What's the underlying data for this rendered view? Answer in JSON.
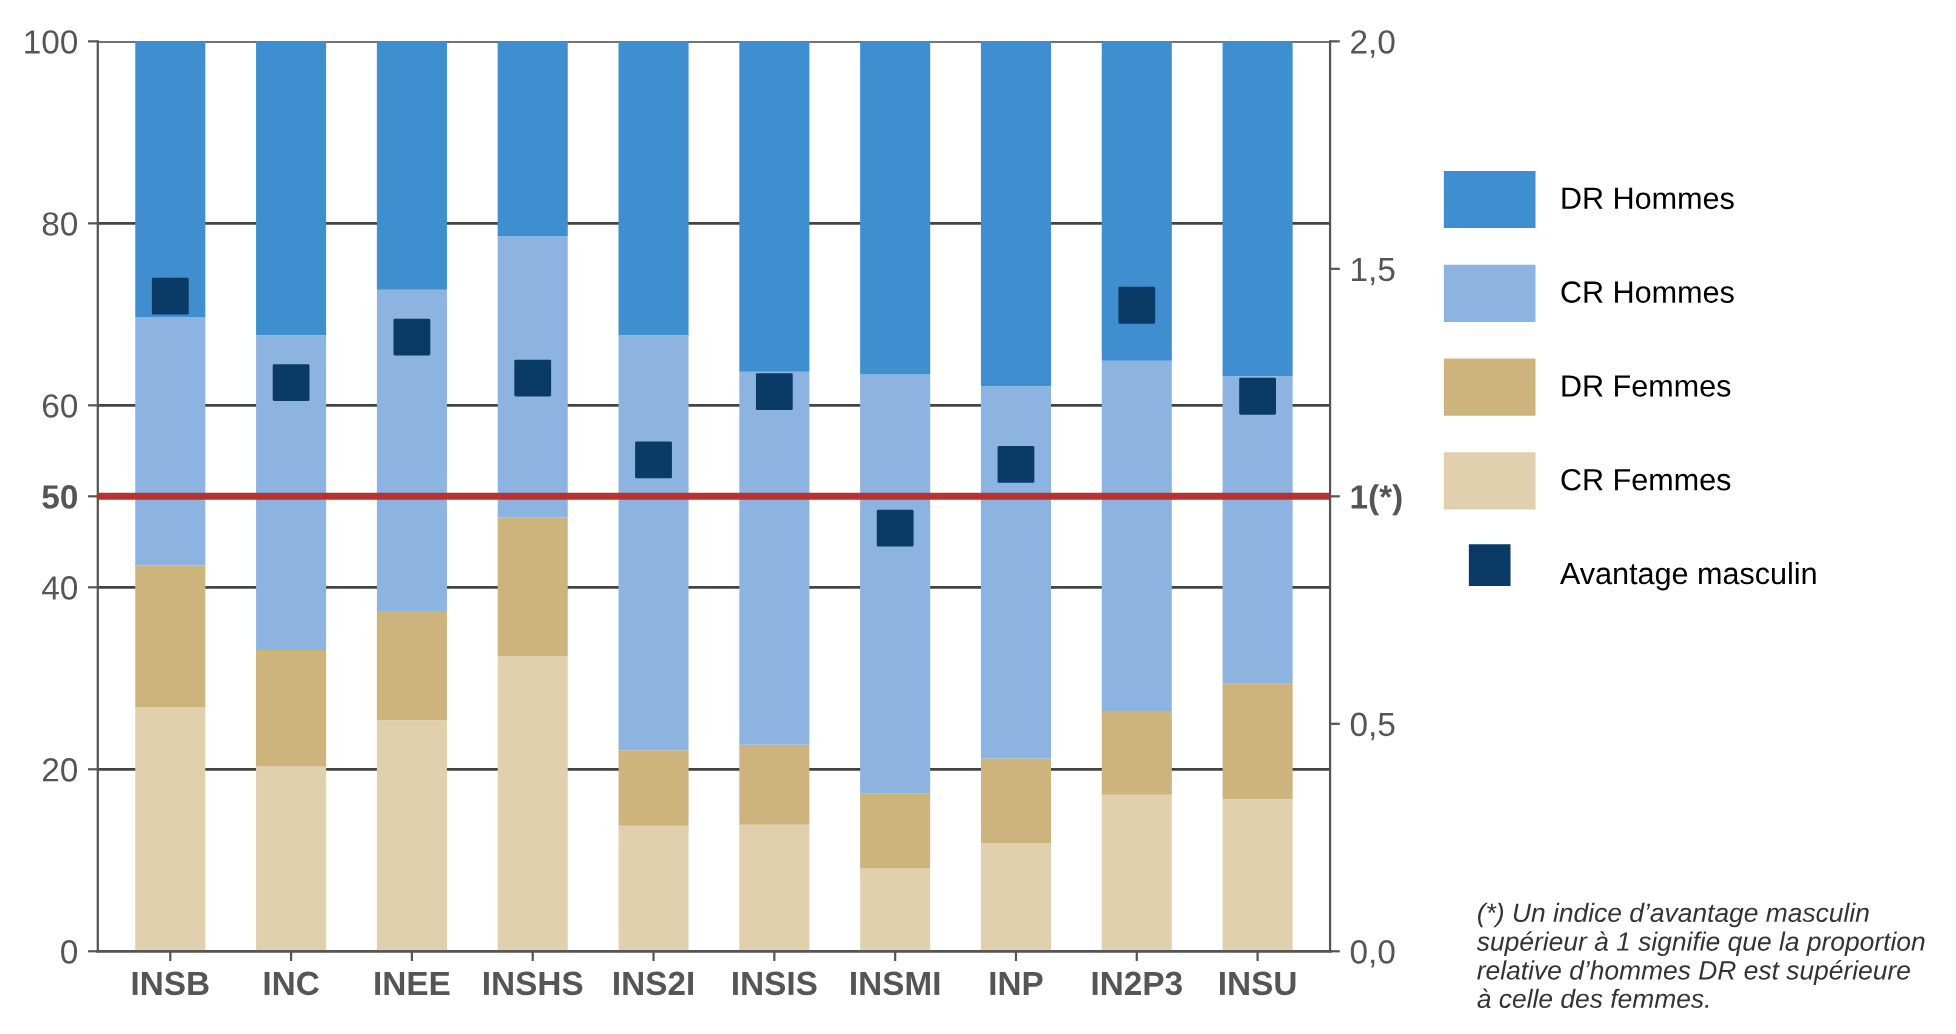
{
  "chart_data": {
    "type": "bar",
    "stacked": true,
    "categories": [
      "INSB",
      "INC",
      "INEE",
      "INSHS",
      "INS2I",
      "INSIS",
      "INSMI",
      "INP",
      "IN2P3",
      "INSU"
    ],
    "series": [
      {
        "name": "CR Femmes",
        "color": "#e0d0ad",
        "values": [
          26.8,
          20.3,
          25.4,
          32.4,
          13.8,
          13.9,
          9.1,
          11.9,
          17.2,
          16.7
        ]
      },
      {
        "name": "DR Femmes",
        "color": "#cdb47c",
        "values": [
          15.6,
          12.8,
          12.0,
          15.3,
          8.3,
          8.8,
          8.2,
          9.3,
          9.2,
          12.7
        ]
      },
      {
        "name": "CR Hommes",
        "color": "#8db4e0",
        "values": [
          27.3,
          34.6,
          35.3,
          30.9,
          45.6,
          41.0,
          46.1,
          40.9,
          38.5,
          33.8
        ]
      },
      {
        "name": "DR Hommes",
        "color": "#3f8fd0",
        "values": [
          30.3,
          32.3,
          27.3,
          21.4,
          32.3,
          36.3,
          36.6,
          37.9,
          35.1,
          36.8
        ]
      },
      {
        "name": "Avantage masculin",
        "type": "scatter",
        "axis": "y2",
        "marker": "square",
        "color": "#0a3a66",
        "values": [
          1.44,
          1.25,
          1.35,
          1.26,
          1.08,
          1.23,
          0.93,
          1.07,
          1.42,
          1.22
        ]
      }
    ],
    "ylim": [
      0,
      100
    ],
    "yticks": [
      0,
      20,
      40,
      50,
      60,
      80,
      100
    ],
    "y2lim": [
      0,
      2
    ],
    "y2ticks": [
      {
        "value": 0,
        "label": "0,0"
      },
      {
        "value": 0.5,
        "label": "0,5"
      },
      {
        "value": 1,
        "label": "1(*)"
      },
      {
        "value": 1.5,
        "label": "1,5"
      },
      {
        "value": 2,
        "label": "2,0"
      }
    ],
    "ref_lines": [
      {
        "axis": "y",
        "value": 50,
        "color": "#b83232"
      }
    ],
    "grid": "y",
    "legend": "right",
    "annotations": [
      "(*) Un indice d’avantage masculin\nsupérieur à 1 signifie que la proportion\nrelative d’hommes DR est supérieure\nà celle des femmes."
    ]
  }
}
